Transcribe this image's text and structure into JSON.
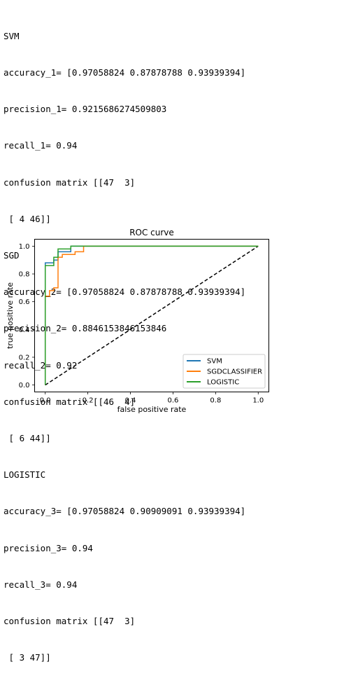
{
  "output_lines": [
    "SVM",
    "accuracy_1= [0.97058824 0.87878788 0.93939394]",
    "precision_1= 0.9215686274509803",
    "recall_1= 0.94",
    "confusion matrix [[47  3]",
    " [ 4 46]]",
    "SGD",
    "accuracy_2= [0.97058824 0.87878788 0.93939394]",
    "precision_2= 0.8846153846153846",
    "recall_2= 0.92",
    "confusion matrix [[46  4]",
    " [ 6 44]]",
    "LOGISTIC",
    "accuracy_3= [0.97058824 0.90909091 0.93939394]",
    "precision_3= 0.94",
    "recall_3= 0.94",
    "confusion matrix [[47  3]",
    " [ 3 47]]"
  ],
  "chart_data": {
    "type": "line",
    "title": "ROC curve",
    "xlabel": "false positive rate",
    "ylabel": "true positive rate",
    "xlim": [
      -0.05,
      1.05
    ],
    "ylim": [
      -0.05,
      1.05
    ],
    "xticks": [
      "0.0",
      "0.2",
      "0.4",
      "0.6",
      "0.8",
      "1.0"
    ],
    "yticks": [
      "0.0",
      "0.2",
      "0.4",
      "0.6",
      "0.8",
      "1.0"
    ],
    "grid": false,
    "legend_position": "lower-right",
    "series": [
      {
        "name": "SVM",
        "color": "#1f77b4",
        "x": [
          0.0,
          0.0,
          0.04,
          0.04,
          0.06,
          0.06,
          0.12,
          0.12,
          0.2,
          1.0
        ],
        "y": [
          0.0,
          0.88,
          0.88,
          0.9,
          0.9,
          0.96,
          0.96,
          1.0,
          1.0,
          1.0
        ]
      },
      {
        "name": "SGDCLASSIFIER",
        "color": "#ff7f0e",
        "x": [
          0.0,
          0.0,
          0.02,
          0.02,
          0.04,
          0.04,
          0.06,
          0.06,
          0.08,
          0.08,
          0.14,
          0.14,
          0.18,
          0.18,
          1.0
        ],
        "y": [
          0.0,
          0.64,
          0.64,
          0.68,
          0.68,
          0.7,
          0.7,
          0.92,
          0.92,
          0.94,
          0.94,
          0.96,
          0.96,
          1.0,
          1.0
        ]
      },
      {
        "name": "LOGISTIC",
        "color": "#2ca02c",
        "x": [
          0.0,
          0.0,
          0.04,
          0.04,
          0.06,
          0.06,
          0.12,
          0.12,
          1.0
        ],
        "y": [
          0.0,
          0.86,
          0.86,
          0.92,
          0.92,
          0.98,
          0.98,
          1.0,
          1.0
        ]
      }
    ],
    "reference_line": {
      "x": [
        0.0,
        1.0
      ],
      "y": [
        0.0,
        1.0
      ],
      "color": "#000000",
      "style": "dashed"
    }
  }
}
